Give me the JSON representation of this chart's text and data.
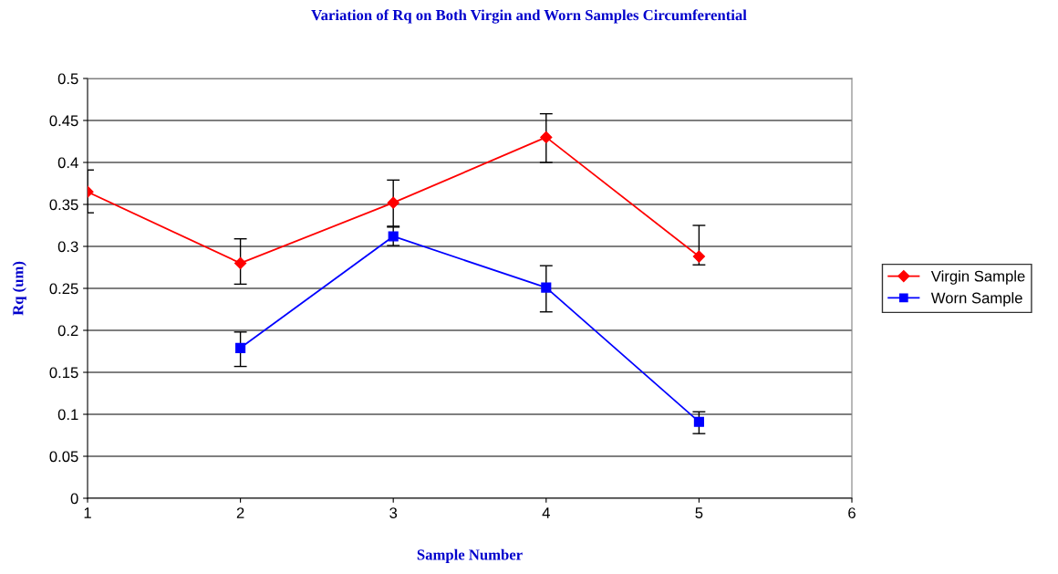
{
  "chart_data": {
    "type": "line",
    "title": "Variation of Rq on Both Virgin and Worn Samples Circumferential",
    "xlabel": "Sample Number",
    "ylabel": "Rq (um)",
    "xlim": [
      1,
      6
    ],
    "xticks": [
      1,
      2,
      3,
      4,
      5,
      6
    ],
    "ylim": [
      0,
      0.5
    ],
    "yticks": [
      0,
      0.05,
      0.1,
      0.15,
      0.2,
      0.25,
      0.3,
      0.35,
      0.4,
      0.45,
      0.5
    ],
    "grid": "y",
    "legend": "right",
    "series": [
      {
        "name": "Virgin Sample",
        "color": "#ff0000",
        "marker": "diamond",
        "x": [
          1,
          2,
          3,
          4,
          5
        ],
        "values": [
          0.365,
          0.28,
          0.352,
          0.43,
          0.288
        ],
        "errors": [
          [
            0.34,
            0.391
          ],
          [
            0.255,
            0.309
          ],
          [
            0.324,
            0.379
          ],
          [
            0.4,
            0.458
          ],
          [
            0.278,
            0.325
          ]
        ]
      },
      {
        "name": "Worn Sample",
        "color": "#0000ff",
        "marker": "square",
        "x": [
          2,
          3,
          4,
          5
        ],
        "values": [
          0.179,
          0.312,
          0.251,
          0.091
        ],
        "errors": [
          [
            0.157,
            0.198
          ],
          [
            0.301,
            0.323
          ],
          [
            0.222,
            0.277
          ],
          [
            0.077,
            0.103
          ]
        ]
      }
    ]
  }
}
